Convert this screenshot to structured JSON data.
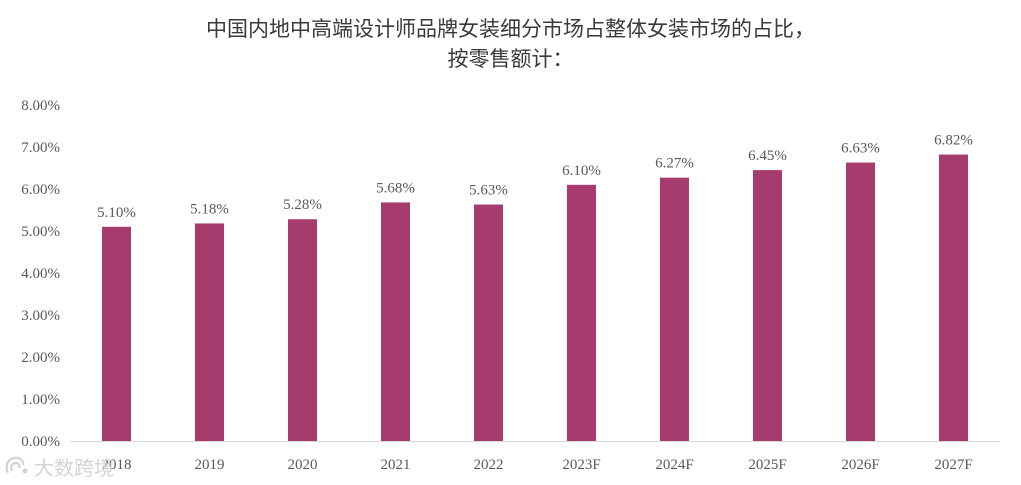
{
  "chart_data": {
    "type": "bar",
    "title": [
      "中国内地中高端设计师品牌女装细分市场占整体女装市场的占比，",
      "按零售额计："
    ],
    "categories": [
      "2018",
      "2019",
      "2020",
      "2021",
      "2022",
      "2023F",
      "2024F",
      "2025F",
      "2026F",
      "2027F"
    ],
    "values": [
      5.1,
      5.18,
      5.28,
      5.68,
      5.63,
      6.1,
      6.27,
      6.45,
      6.63,
      6.82
    ],
    "data_labels": [
      "5.10%",
      "5.18%",
      "5.28%",
      "5.68%",
      "5.63%",
      "6.10%",
      "6.27%",
      "6.45%",
      "6.63%",
      "6.82%"
    ],
    "y_ticks": [
      "0.00%",
      "1.00%",
      "2.00%",
      "3.00%",
      "4.00%",
      "5.00%",
      "6.00%",
      "7.00%",
      "8.00%"
    ],
    "ylim": [
      0,
      8
    ],
    "xlabel": "",
    "ylabel": "",
    "grid": false,
    "legend": "none",
    "bar_color": "#A63C6E"
  },
  "watermark": {
    "text": "大数跨境",
    "icon": "logo-icon"
  }
}
